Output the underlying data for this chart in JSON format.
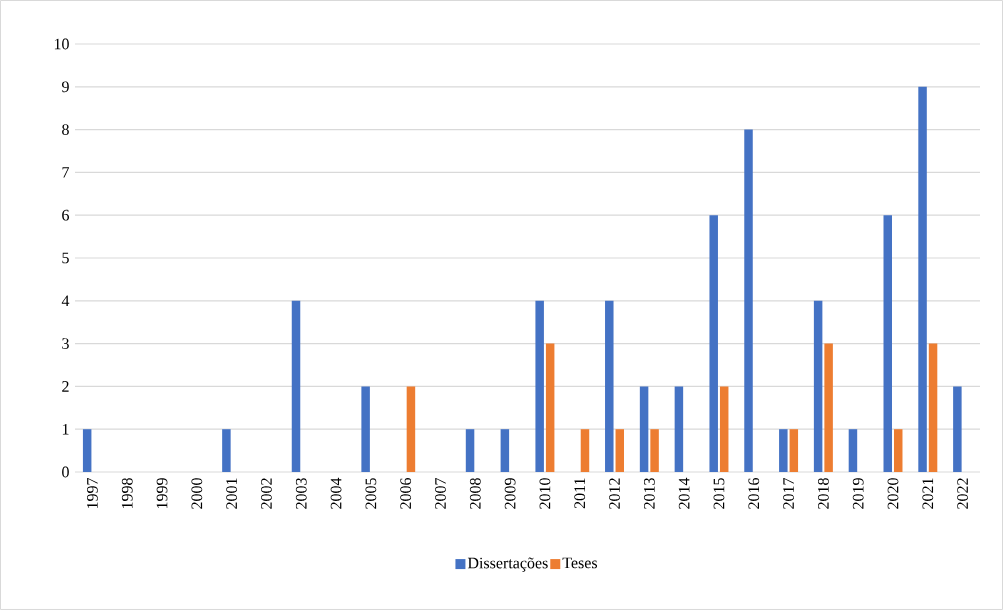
{
  "chart_data": {
    "type": "bar",
    "categories": [
      "1997",
      "1998",
      "1999",
      "2000",
      "2001",
      "2002",
      "2003",
      "2004",
      "2005",
      "2006",
      "2007",
      "2008",
      "2009",
      "2010",
      "2011",
      "2012",
      "2013",
      "2014",
      "2015",
      "2016",
      "2017",
      "2018",
      "2019",
      "2020",
      "2021",
      "2022"
    ],
    "series": [
      {
        "name": "Dissertações",
        "color": "#4472c4",
        "values": [
          1,
          0,
          0,
          0,
          1,
          0,
          4,
          0,
          2,
          0,
          0,
          1,
          1,
          4,
          0,
          4,
          2,
          2,
          6,
          8,
          1,
          4,
          1,
          6,
          9,
          2
        ]
      },
      {
        "name": "Teses",
        "color": "#ed7d31",
        "values": [
          0,
          0,
          0,
          0,
          0,
          0,
          0,
          0,
          0,
          2,
          0,
          0,
          0,
          3,
          1,
          1,
          1,
          0,
          2,
          0,
          1,
          3,
          0,
          1,
          3,
          0
        ]
      }
    ],
    "ylim": [
      0,
      10
    ],
    "yticks": [
      0,
      1,
      2,
      3,
      4,
      5,
      6,
      7,
      8,
      9,
      10
    ],
    "grid": "y",
    "legend": "bottom"
  }
}
